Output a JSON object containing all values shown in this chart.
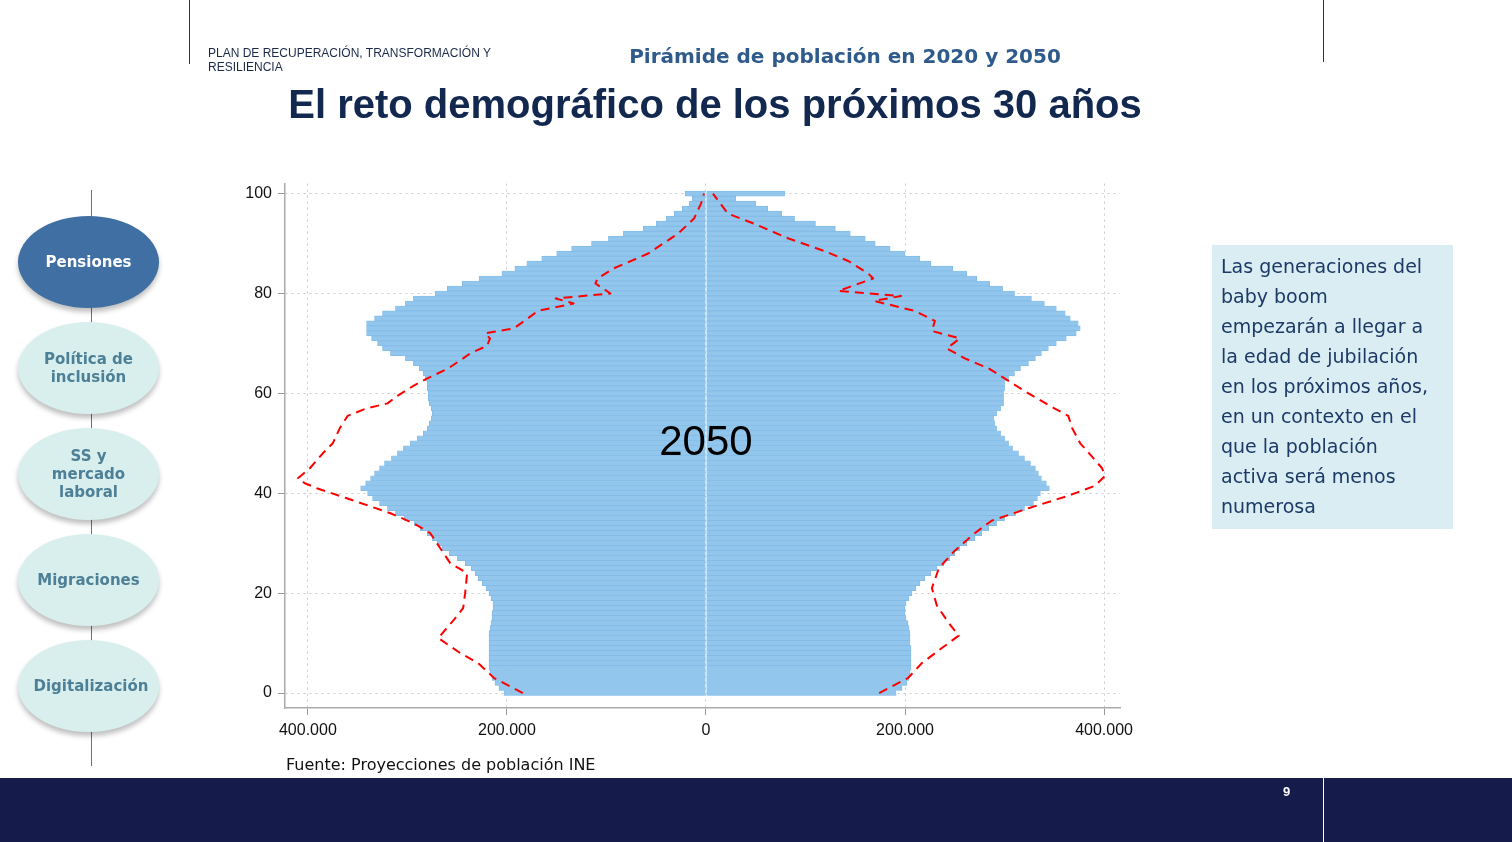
{
  "chart_data": {
    "type": "bar",
    "orientation": "horizontal",
    "stacked": true,
    "title": "El reto demográfico de los próximos 30 años",
    "subtitle": "Pirámide de población en 2020 y 2050",
    "x": [
      0,
      1,
      2,
      3,
      4,
      5,
      6,
      7,
      8,
      9,
      10,
      11,
      12,
      13,
      14,
      15,
      16,
      17,
      18,
      19,
      20,
      21,
      22,
      23,
      24,
      25,
      26,
      27,
      28,
      29,
      30,
      31,
      32,
      33,
      34,
      35,
      36,
      37,
      38,
      39,
      40,
      41,
      42,
      43,
      44,
      45,
      46,
      47,
      48,
      49,
      50,
      51,
      52,
      53,
      54,
      55,
      56,
      57,
      58,
      59,
      60,
      61,
      62,
      63,
      64,
      65,
      66,
      67,
      68,
      69,
      70,
      71,
      72,
      73,
      74,
      75,
      76,
      77,
      78,
      79,
      80,
      81,
      82,
      83,
      84,
      85,
      86,
      87,
      88,
      89,
      90,
      91,
      92,
      93,
      94,
      95,
      96,
      97,
      98,
      99,
      100
    ],
    "series": [
      {
        "color": "#92c6ec",
        "values": [
          -203000,
          -208000,
          -212000,
          -215000,
          -217000,
          -218000,
          -218000,
          -218000,
          -218000,
          -218000,
          -218000,
          -218000,
          -218000,
          -217000,
          -216000,
          -215000,
          -215000,
          -214000,
          -214000,
          -216000,
          -218000,
          -221000,
          -225000,
          -229000,
          -232000,
          -236000,
          -242000,
          -250000,
          -258000,
          -265000,
          -270000,
          -275000,
          -280000,
          -287000,
          -293000,
          -303000,
          -312000,
          -320000,
          -328000,
          -335000,
          -340000,
          -347000,
          -342000,
          -337000,
          -333000,
          -328000,
          -323000,
          -316000,
          -310000,
          -304000,
          -297000,
          -290000,
          -284000,
          -280000,
          -278000,
          -276000,
          -275000,
          -276000,
          -278000,
          -279000,
          -279000,
          -280000,
          -280000,
          -282000,
          -284000,
          -288000,
          -294000,
          -302000,
          -317000,
          -325000,
          -330000,
          -336000,
          -341000,
          -341000,
          -341000,
          -333000,
          -325000,
          -312000,
          -302000,
          -294000,
          -272000,
          -260000,
          -245000,
          -228000,
          -205000,
          -192000,
          -180000,
          -165000,
          -150000,
          -135000,
          -115000,
          -98000,
          -83000,
          -63000,
          -50000,
          -40000,
          -32000,
          -24000,
          -17000,
          -14000,
          -21000
        ]
      },
      {
        "color": "#92c6ec",
        "values": [
          191000,
          197000,
          202000,
          204000,
          205000,
          206000,
          206000,
          206000,
          206000,
          206000,
          205000,
          205000,
          205000,
          204000,
          203000,
          201000,
          200000,
          200000,
          201000,
          204000,
          207000,
          211000,
          215000,
          220000,
          226000,
          232000,
          239000,
          245000,
          250000,
          255000,
          262000,
          270000,
          277000,
          284000,
          292000,
          300000,
          311000,
          320000,
          329000,
          333000,
          336000,
          345000,
          342000,
          337000,
          334000,
          331000,
          326000,
          320000,
          314000,
          308000,
          304000,
          300000,
          296000,
          292000,
          290000,
          289000,
          292000,
          296000,
          299000,
          299000,
          299000,
          300000,
          300000,
          304000,
          310000,
          316000,
          324000,
          331000,
          337000,
          344000,
          352000,
          362000,
          372000,
          376000,
          374000,
          366000,
          361000,
          352000,
          340000,
          327000,
          310000,
          298000,
          285000,
          272000,
          262000,
          248000,
          226000,
          215000,
          200000,
          185000,
          170000,
          160000,
          145000,
          130000,
          110000,
          89000,
          76000,
          62000,
          50000,
          30000,
          79000
        ]
      },
      {
        "type": "line",
        "color": "#ff0000",
        "line_style": "dashed",
        "x": [
          0,
          3,
          6,
          8,
          11,
          14.5,
          17,
          20,
          24,
          26,
          29,
          32,
          34,
          36,
          39,
          41,
          42,
          43,
          45,
          48,
          50,
          53,
          55.5,
          57,
          58,
          59.5,
          61.5,
          63,
          65,
          67,
          68,
          69.5,
          71,
          72,
          73,
          75,
          76.5,
          78,
          79,
          80,
          82,
          83,
          85,
          88,
          92,
          95,
          98,
          100
        ],
        "values": [
          -184000,
          -213000,
          -229000,
          -247000,
          -269000,
          -254000,
          -244000,
          -242000,
          -240000,
          -257000,
          -267000,
          -277000,
          -294000,
          -317000,
          -361000,
          -391000,
          -403000,
          -410000,
          -398000,
          -385000,
          -375000,
          -368000,
          -360000,
          -341000,
          -320000,
          -310000,
          -294000,
          -280000,
          -259000,
          -244000,
          -237000,
          -220000,
          -217000,
          -222000,
          -193000,
          -179000,
          -169000,
          -133000,
          -151000,
          -96000,
          -111000,
          -109000,
          -93000,
          -58000,
          -28000,
          -12000,
          -5000,
          -2000
        ]
      },
      {
        "type": "line",
        "color": "#ff0000",
        "line_style": "dashed",
        "x": [
          0,
          3,
          6,
          9,
          11.5,
          14,
          17.5,
          21,
          25,
          28.5,
          32,
          34.5,
          37,
          39.5,
          41.5,
          43.5,
          45,
          48,
          50,
          53,
          55.5,
          57,
          60,
          63,
          65,
          67,
          69,
          71,
          72.5,
          74.5,
          76.5,
          78.5,
          79.5,
          80.5,
          83,
          84,
          86.5,
          88.5,
          91,
          94,
          96,
          100
        ],
        "values": [
          174000,
          203000,
          217000,
          237000,
          254000,
          244000,
          232000,
          227000,
          234000,
          250000,
          270000,
          287000,
          324000,
          364000,
          391000,
          401000,
          398000,
          385000,
          376000,
          368000,
          364000,
          350000,
          324000,
          300000,
          284000,
          260000,
          242000,
          255000,
          227000,
          230000,
          210000,
          169000,
          196000,
          133000,
          168000,
          163000,
          143000,
          119000,
          83000,
          48000,
          22000,
          7000
        ]
      }
    ],
    "xlim": [
      -423000,
      416000
    ],
    "xticks": [
      {
        "value": -400000,
        "label": "400.000"
      },
      {
        "value": -200000,
        "label": "200.000"
      },
      0,
      {
        "value": 200000,
        "label": "200.000"
      },
      {
        "value": 400000,
        "label": "400.000"
      }
    ],
    "ylim": [
      -3,
      102
    ],
    "yticks": [
      0,
      20,
      40,
      60,
      80,
      100
    ],
    "grid": true,
    "legend": false,
    "annotations": [
      "PLAN DE RECUPERACIÓN, TRANSFORMACIÓN Y RESILIENCIA",
      "Pensiones",
      "Política de inclusión",
      "SS y mercado laboral",
      "Migraciones",
      "Digitalización",
      "Las generaciones del baby boom empezarán a llegar a la edad de jubilación en los próximos años, en un contexto en el que la población activa será menos numerosa",
      "Fuente: Proyecciones de población INE",
      "9",
      {
        "text": "2050",
        "x": 0,
        "y": 50
      }
    ]
  }
}
